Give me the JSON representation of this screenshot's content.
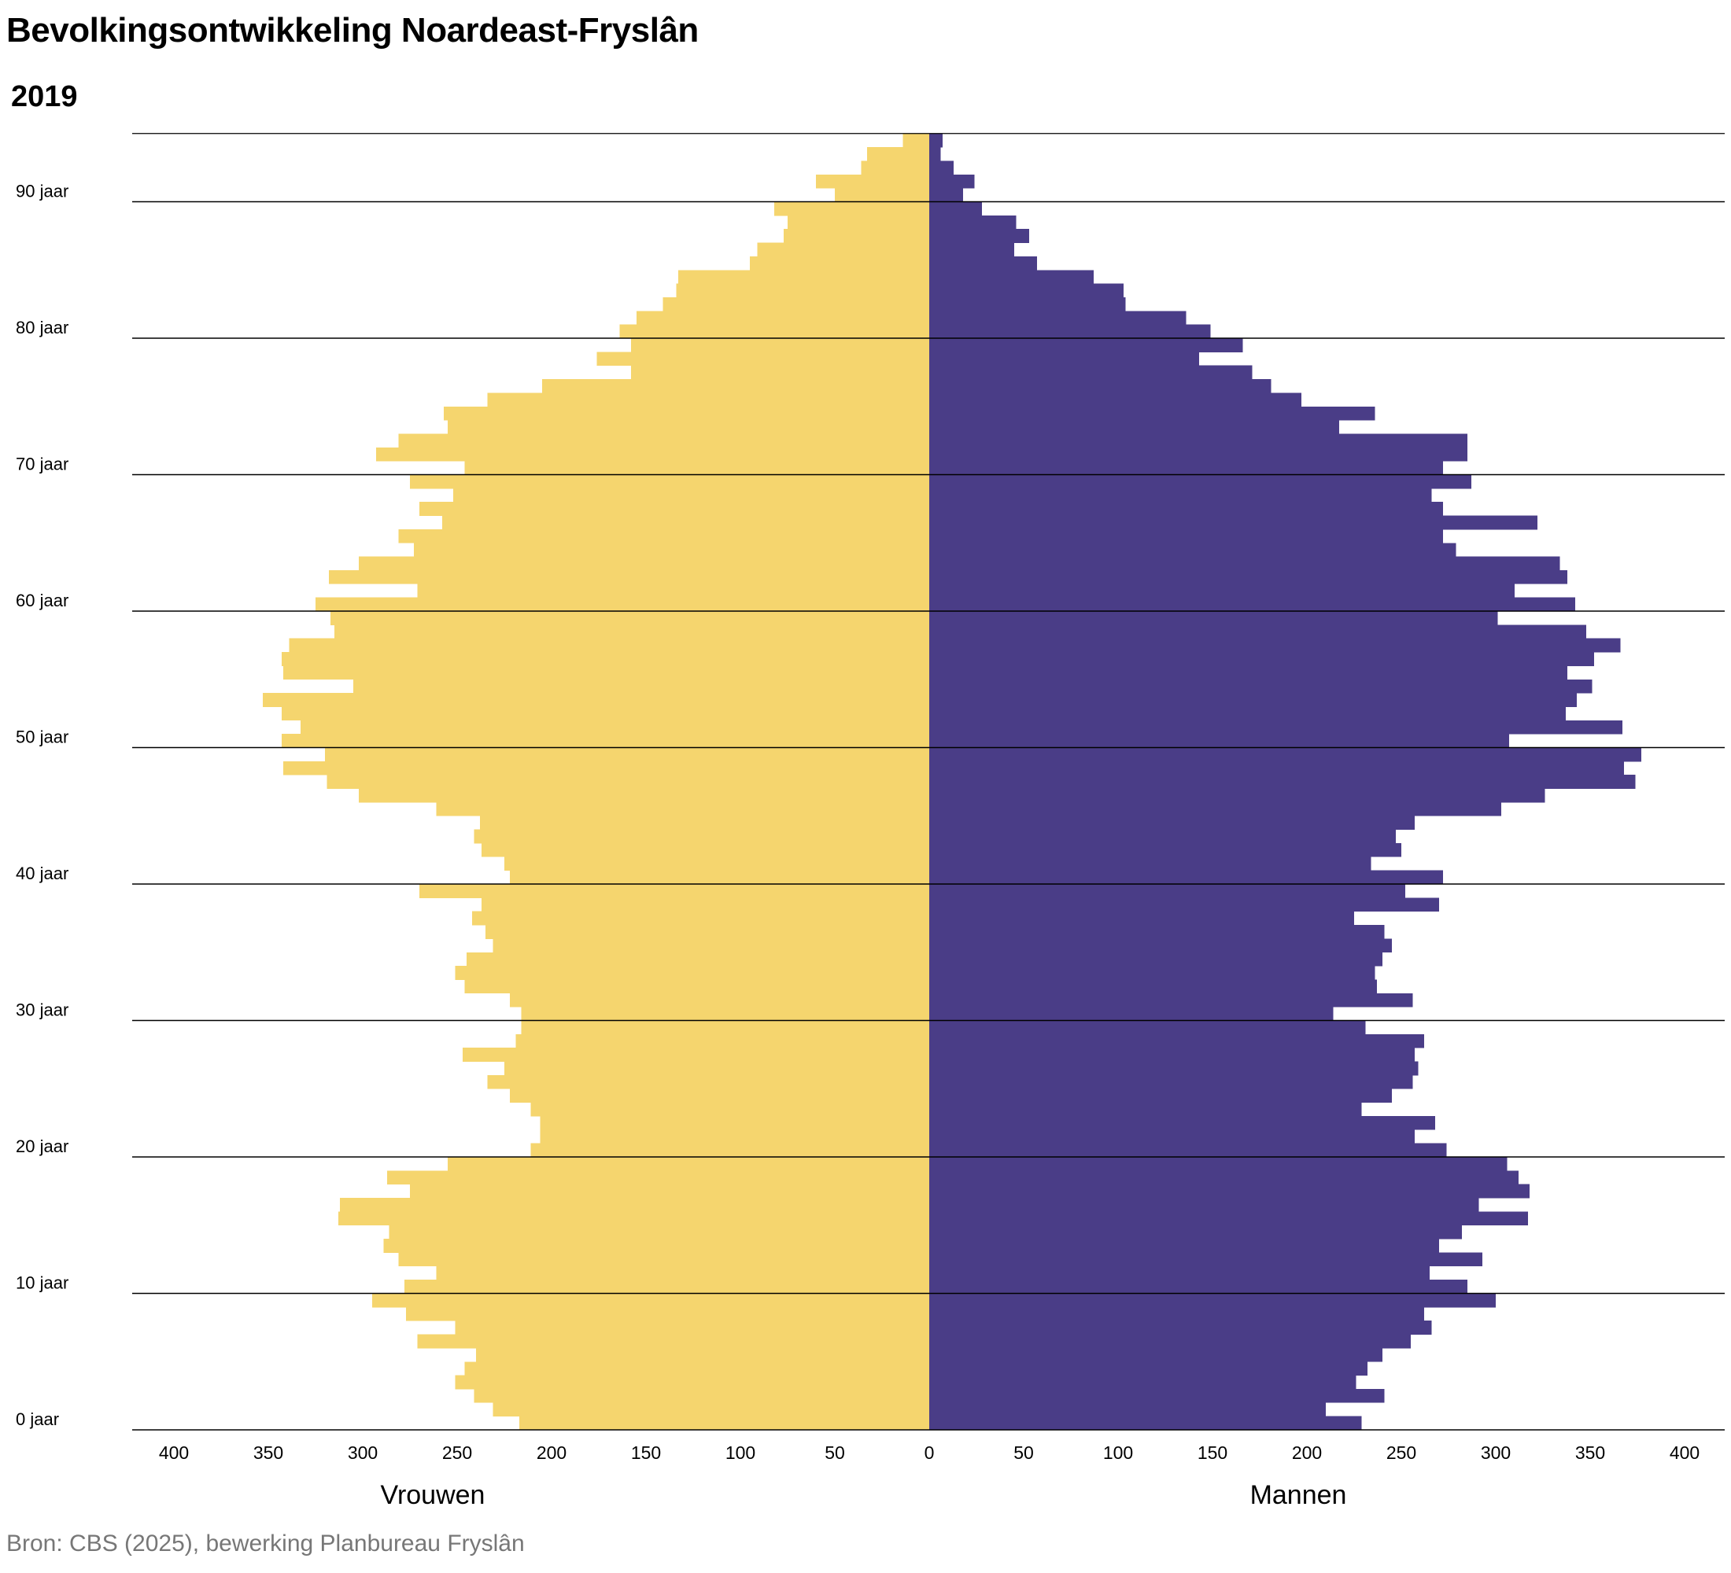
{
  "title": "Bevolkingsontwikkeling Noardeast-Fryslân",
  "subtitle": "2019",
  "source": "Bron: CBS (2025), bewerking Planbureau Fryslân",
  "colors": {
    "women": "#F5D56E",
    "men": "#4A3D87",
    "grid": "#000000",
    "source_text": "#777777"
  },
  "chart_data": {
    "type": "population-pyramid",
    "title": "Bevolkingsontwikkeling Noardeast-Fryslân",
    "subtitle": "2019",
    "xlim": [
      -400,
      400
    ],
    "x_ticks": [
      -400,
      -350,
      -300,
      -250,
      -200,
      -150,
      -100,
      -50,
      0,
      50,
      100,
      150,
      200,
      250,
      300,
      350,
      400
    ],
    "x_tick_labels": [
      "400",
      "350",
      "300",
      "250",
      "200",
      "150",
      "100",
      "50",
      "0",
      "50",
      "100",
      "150",
      "200",
      "250",
      "300",
      "350",
      "400"
    ],
    "left_label": "Vrouwen",
    "right_label": "Mannen",
    "age_range": [
      0,
      94
    ],
    "age_ticks": [
      0,
      10,
      20,
      30,
      40,
      50,
      60,
      70,
      80,
      90
    ],
    "age_tick_labels": [
      "0 jaar",
      "10 jaar",
      "20 jaar",
      "30 jaar",
      "40 jaar",
      "50 jaar",
      "60 jaar",
      "70 jaar",
      "80 jaar",
      "90 jaar"
    ],
    "series": [
      {
        "name": "Vrouwen",
        "side": "left",
        "values": [
          217,
          231,
          241,
          251,
          246,
          240,
          271,
          251,
          277,
          295,
          278,
          261,
          281,
          289,
          286,
          313,
          312,
          275,
          287,
          255,
          211,
          206,
          206,
          211,
          222,
          234,
          225,
          247,
          219,
          216,
          216,
          222,
          246,
          251,
          245,
          231,
          235,
          242,
          237,
          270,
          222,
          225,
          237,
          241,
          238,
          261,
          302,
          319,
          342,
          320,
          343,
          333,
          343,
          353,
          305,
          342,
          343,
          339,
          315,
          317,
          325,
          271,
          318,
          302,
          273,
          281,
          258,
          270,
          252,
          275,
          246,
          293,
          281,
          255,
          257,
          234,
          205,
          158,
          176,
          158,
          164,
          155,
          141,
          134,
          133,
          95,
          91,
          77,
          75,
          82,
          50,
          60,
          36,
          33,
          14
        ]
      },
      {
        "name": "Mannen",
        "side": "right",
        "values": [
          229,
          210,
          241,
          226,
          232,
          240,
          255,
          266,
          262,
          300,
          285,
          265,
          293,
          270,
          282,
          317,
          291,
          318,
          312,
          306,
          274,
          257,
          268,
          229,
          245,
          256,
          259,
          257,
          262,
          231,
          214,
          256,
          237,
          236,
          240,
          245,
          241,
          225,
          270,
          252,
          272,
          234,
          250,
          247,
          257,
          303,
          326,
          374,
          368,
          377,
          307,
          367,
          337,
          343,
          351,
          338,
          352,
          366,
          348,
          301,
          342,
          310,
          338,
          334,
          279,
          272,
          322,
          272,
          266,
          287,
          272,
          285,
          285,
          217,
          236,
          197,
          181,
          171,
          143,
          166,
          149,
          136,
          104,
          103,
          87,
          57,
          45,
          53,
          46,
          28,
          18,
          24,
          13,
          6,
          7
        ]
      }
    ]
  }
}
